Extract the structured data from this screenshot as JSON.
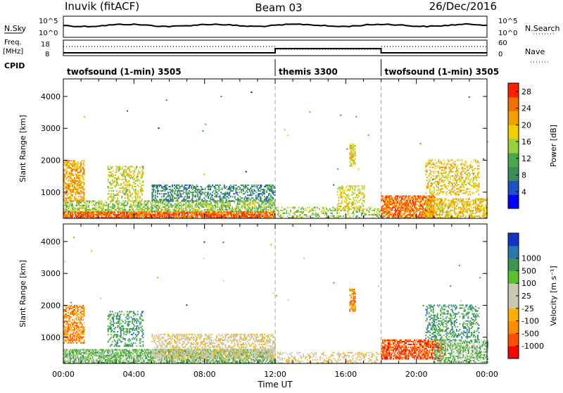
{
  "header": {
    "station": "Inuvik (fitACF)",
    "beam": "Beam 03",
    "date": "26/Dec/2016"
  },
  "top_panels": {
    "nsky_label": "N.Sky",
    "nsky_ticks": [
      "10^5",
      "10^0"
    ],
    "nsearch_label": "N.Search",
    "freq_label": "Freq.",
    "freq_unit": "[MHz]",
    "freq_ticks": [
      "18",
      "8"
    ],
    "nave_label": "Nave",
    "nave_ticks": [
      "60",
      "0"
    ],
    "cpid_label": "CPID",
    "cpid_segments": [
      {
        "label": "twofsound (1-min) 3505",
        "start": 0,
        "end": 12
      },
      {
        "label": "themis 3300",
        "start": 12,
        "end": 18
      },
      {
        "label": "twofsound (1-min) 3505",
        "start": 18,
        "end": 24
      }
    ]
  },
  "colors": {
    "power_scale": [
      "#0000ff",
      "#1e50c8",
      "#3a8c5a",
      "#4aa84a",
      "#9ad03c",
      "#f0d000",
      "#f5a000",
      "#f07000",
      "#ff2000"
    ],
    "velocity_scale": [
      "#ff0000",
      "#ff5000",
      "#ff8c00",
      "#ffb000",
      "#c8c8b4",
      "#c8c8b4",
      "#5abe2d",
      "#3a9650",
      "#2878aa",
      "#1432c8"
    ]
  },
  "chart_data": [
    {
      "type": "heatmap",
      "panel": "power",
      "ylabel": "Slant Range [km]",
      "yticks": [
        1000,
        2000,
        3000,
        4000
      ],
      "ylim": [
        180,
        4550
      ],
      "xlim": [
        0,
        24
      ],
      "colorbar_label": "Power [dB]",
      "colorbar_ticks": [
        "4",
        "8",
        "12",
        "16",
        "20",
        "24",
        "28"
      ],
      "colorbar_range": [
        0,
        30
      ],
      "dashed_time_markers": [
        12,
        18
      ],
      "regions": [
        {
          "t0": 0.0,
          "t1": 12.0,
          "r0": 180,
          "r1": 380,
          "level": 27,
          "density": 0.85
        },
        {
          "t0": 0.0,
          "t1": 12.0,
          "r0": 380,
          "r1": 700,
          "level": 14,
          "density": 0.55
        },
        {
          "t0": 0.0,
          "t1": 1.2,
          "r0": 700,
          "r1": 2000,
          "level": 22,
          "density": 0.6
        },
        {
          "t0": 2.5,
          "t1": 4.5,
          "r0": 700,
          "r1": 1800,
          "level": 17,
          "density": 0.35
        },
        {
          "t0": 5.0,
          "t1": 12.0,
          "r0": 700,
          "r1": 1200,
          "level": 8,
          "density": 0.45
        },
        {
          "t0": 12.0,
          "t1": 18.0,
          "r0": 180,
          "r1": 500,
          "level": 14,
          "density": 0.3
        },
        {
          "t0": 16.2,
          "t1": 16.5,
          "r0": 1800,
          "r1": 2500,
          "level": 18,
          "density": 0.7
        },
        {
          "t0": 15.5,
          "t1": 17.0,
          "r0": 400,
          "r1": 1200,
          "level": 18,
          "density": 0.35
        },
        {
          "t0": 18.0,
          "t1": 21.0,
          "r0": 180,
          "r1": 900,
          "level": 26,
          "density": 0.7
        },
        {
          "t0": 20.5,
          "t1": 24.0,
          "r0": 180,
          "r1": 800,
          "level": 20,
          "density": 0.55
        },
        {
          "t0": 20.5,
          "t1": 23.5,
          "r0": 900,
          "r1": 2000,
          "level": 20,
          "density": 0.35
        }
      ]
    },
    {
      "type": "heatmap",
      "panel": "velocity",
      "ylabel": "Slant Range [km]",
      "yticks": [
        1000,
        2000,
        3000,
        4000
      ],
      "ylim": [
        180,
        4550
      ],
      "xlim": [
        0,
        24
      ],
      "xticks": [
        "00:00",
        "04:00",
        "08:00",
        "12:00",
        "16:00",
        "20:00",
        "00:00"
      ],
      "xlabel": "Time UT",
      "colorbar_label": "Velocity [m s⁻¹]",
      "colorbar_ticks": [
        "-1000",
        "-500",
        "-100",
        "-25",
        "25",
        "100",
        "500",
        "1000"
      ],
      "dashed_time_markers": [
        12,
        18
      ],
      "regions": [
        {
          "t0": 0.0,
          "t1": 12.0,
          "r0": 180,
          "r1": 600,
          "level": 6,
          "density": 0.7
        },
        {
          "t0": 5.0,
          "t1": 12.0,
          "r0": 300,
          "r1": 1100,
          "level": 4,
          "density": 0.45
        },
        {
          "t0": 0.0,
          "t1": 1.2,
          "r0": 800,
          "r1": 2000,
          "level": 2,
          "density": 0.55
        },
        {
          "t0": 2.5,
          "t1": 4.5,
          "r0": 700,
          "r1": 1800,
          "level": 7,
          "density": 0.35
        },
        {
          "t0": 12.0,
          "t1": 18.0,
          "r0": 180,
          "r1": 500,
          "level": 4,
          "density": 0.3
        },
        {
          "t0": 16.2,
          "t1": 16.5,
          "r0": 1800,
          "r1": 2500,
          "level": 2,
          "density": 0.7
        },
        {
          "t0": 18.0,
          "t1": 21.5,
          "r0": 300,
          "r1": 900,
          "level": 1,
          "density": 0.65
        },
        {
          "t0": 21.0,
          "t1": 24.0,
          "r0": 200,
          "r1": 900,
          "level": 6,
          "density": 0.5
        },
        {
          "t0": 20.5,
          "t1": 23.5,
          "r0": 900,
          "r1": 2000,
          "level": 7,
          "density": 0.35
        }
      ]
    }
  ]
}
